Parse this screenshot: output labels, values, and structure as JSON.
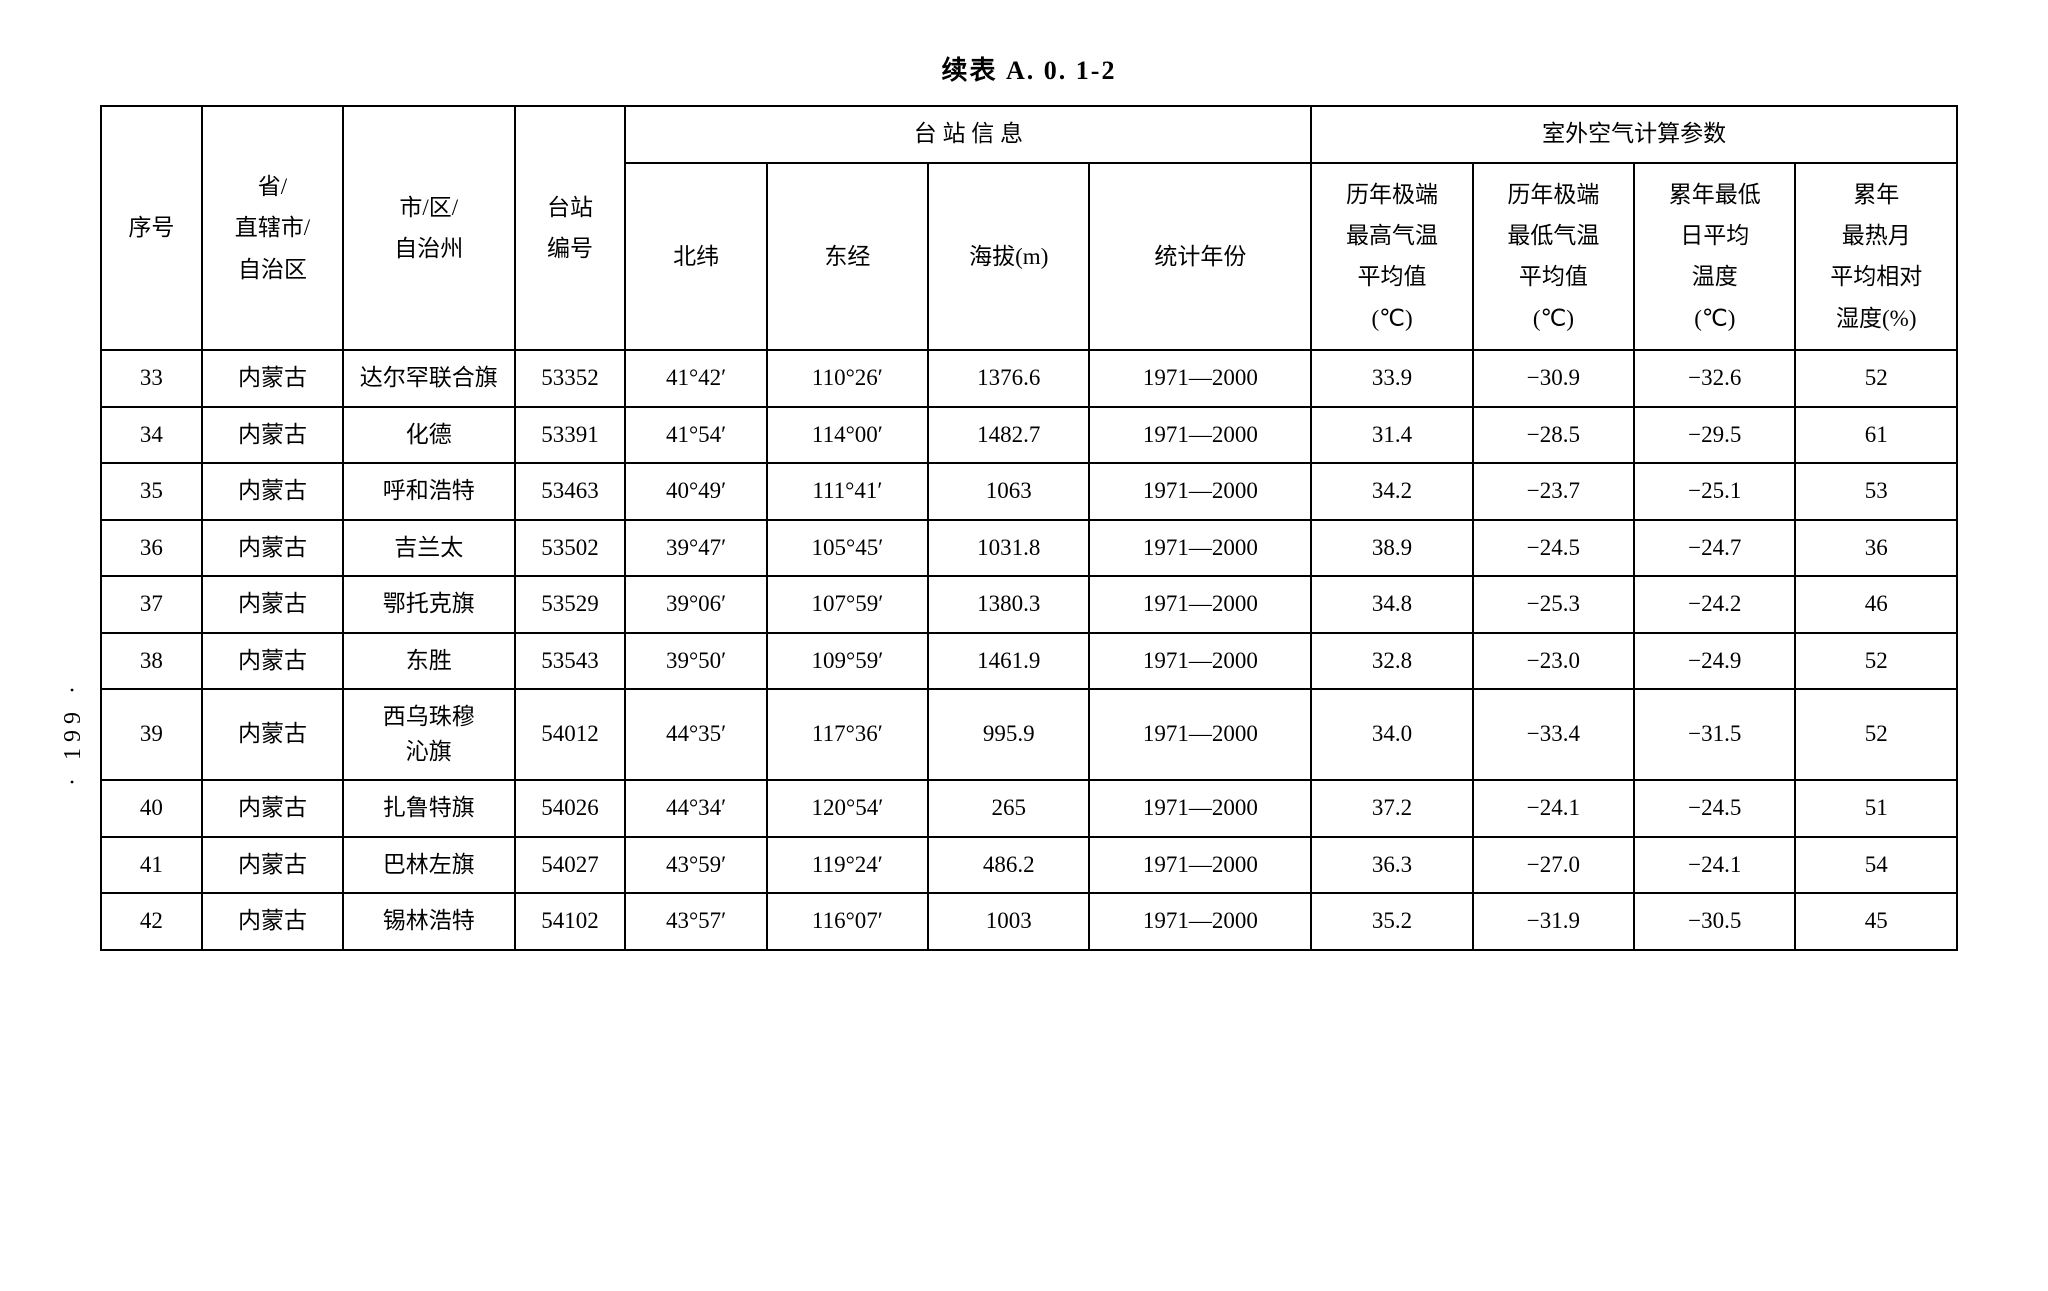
{
  "title": "续表 A. 0. 1-2",
  "pageNumber": "· 199 ·",
  "headers": {
    "seq": "序号",
    "province": "省/\n直辖市/\n自治区",
    "city": "市/区/\n自治州",
    "stationId": "台站\n编号",
    "stationInfoGroup": "台 站 信 息",
    "lat": "北纬",
    "lon": "东经",
    "altitude": "海拔(m)",
    "statYears": "统计年份",
    "outdoorParamsGroup": "室外空气计算参数",
    "maxTemp": "历年极端\n最高气温\n平均值\n(℃)",
    "minTemp": "历年极端\n最低气温\n平均值\n(℃)",
    "avgMinDaily": "累年最低\n日平均\n温度\n(℃)",
    "hotHumidity": "累年\n最热月\n平均相对\n湿度(%)"
  },
  "rows": [
    {
      "seq": "33",
      "province": "内蒙古",
      "city": "达尔罕联合旗",
      "stationId": "53352",
      "lat": "41°42′",
      "lon": "110°26′",
      "alt": "1376.6",
      "years": "1971—2000",
      "maxT": "33.9",
      "minT": "−30.9",
      "avgMin": "−32.6",
      "hum": "52"
    },
    {
      "seq": "34",
      "province": "内蒙古",
      "city": "化德",
      "stationId": "53391",
      "lat": "41°54′",
      "lon": "114°00′",
      "alt": "1482.7",
      "years": "1971—2000",
      "maxT": "31.4",
      "minT": "−28.5",
      "avgMin": "−29.5",
      "hum": "61"
    },
    {
      "seq": "35",
      "province": "内蒙古",
      "city": "呼和浩特",
      "stationId": "53463",
      "lat": "40°49′",
      "lon": "111°41′",
      "alt": "1063",
      "years": "1971—2000",
      "maxT": "34.2",
      "minT": "−23.7",
      "avgMin": "−25.1",
      "hum": "53"
    },
    {
      "seq": "36",
      "province": "内蒙古",
      "city": "吉兰太",
      "stationId": "53502",
      "lat": "39°47′",
      "lon": "105°45′",
      "alt": "1031.8",
      "years": "1971—2000",
      "maxT": "38.9",
      "minT": "−24.5",
      "avgMin": "−24.7",
      "hum": "36"
    },
    {
      "seq": "37",
      "province": "内蒙古",
      "city": "鄂托克旗",
      "stationId": "53529",
      "lat": "39°06′",
      "lon": "107°59′",
      "alt": "1380.3",
      "years": "1971—2000",
      "maxT": "34.8",
      "minT": "−25.3",
      "avgMin": "−24.2",
      "hum": "46"
    },
    {
      "seq": "38",
      "province": "内蒙古",
      "city": "东胜",
      "stationId": "53543",
      "lat": "39°50′",
      "lon": "109°59′",
      "alt": "1461.9",
      "years": "1971—2000",
      "maxT": "32.8",
      "minT": "−23.0",
      "avgMin": "−24.9",
      "hum": "52"
    },
    {
      "seq": "39",
      "province": "内蒙古",
      "city": "西乌珠穆\n沁旗",
      "stationId": "54012",
      "lat": "44°35′",
      "lon": "117°36′",
      "alt": "995.9",
      "years": "1971—2000",
      "maxT": "34.0",
      "minT": "−33.4",
      "avgMin": "−31.5",
      "hum": "52"
    },
    {
      "seq": "40",
      "province": "内蒙古",
      "city": "扎鲁特旗",
      "stationId": "54026",
      "lat": "44°34′",
      "lon": "120°54′",
      "alt": "265",
      "years": "1971—2000",
      "maxT": "37.2",
      "minT": "−24.1",
      "avgMin": "−24.5",
      "hum": "51"
    },
    {
      "seq": "41",
      "province": "内蒙古",
      "city": "巴林左旗",
      "stationId": "54027",
      "lat": "43°59′",
      "lon": "119°24′",
      "alt": "486.2",
      "years": "1971—2000",
      "maxT": "36.3",
      "minT": "−27.0",
      "avgMin": "−24.1",
      "hum": "54"
    },
    {
      "seq": "42",
      "province": "内蒙古",
      "city": "锡林浩特",
      "stationId": "54102",
      "lat": "43°57′",
      "lon": "116°07′",
      "alt": "1003",
      "years": "1971—2000",
      "maxT": "35.2",
      "minT": "−31.9",
      "avgMin": "−30.5",
      "hum": "45"
    }
  ]
}
